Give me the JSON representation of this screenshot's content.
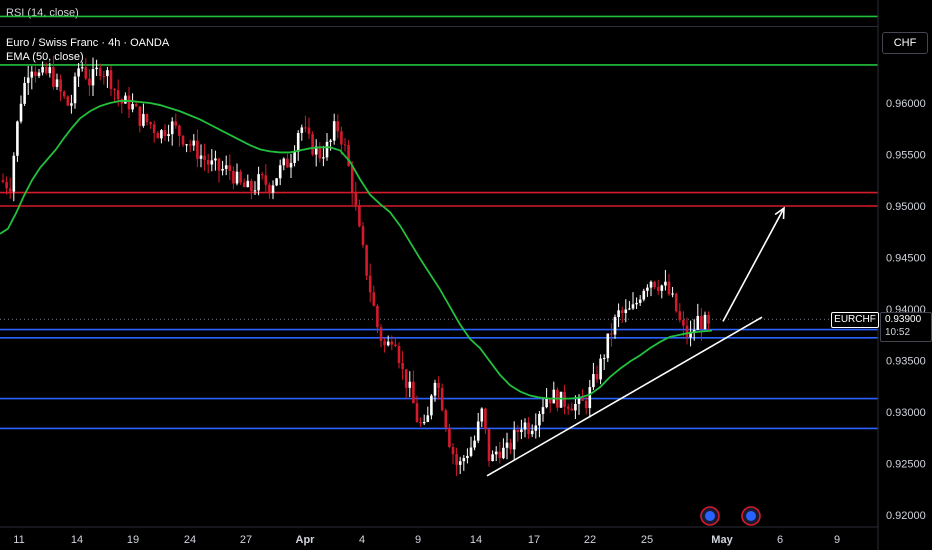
{
  "rsi_label": "RSI (14, close)",
  "symbol_title": "Euro / Swiss Franc · 4h · OANDA",
  "ema_label": "EMA (50, close)",
  "currency_button": "CHF",
  "symbol_tag": "EURCHF",
  "last_price": "0.93900",
  "countdown": "10:52",
  "colors": {
    "background": "#000000",
    "bull": "#ffffff",
    "bear": "#d41a2c",
    "ema": "#22c03c",
    "resistance_green": "#22c03c",
    "resistance_red": "#d41a2c",
    "support_blue": "#2962ff",
    "trendline": "#ffffff",
    "grid_text": "#d1d4dc"
  },
  "event_icons": [
    "economic-event-icon",
    "economic-event-icon"
  ],
  "chart_data": {
    "type": "candlestick",
    "title": "Euro / Swiss Franc · 4h · OANDA",
    "y_axis_ticks": [
      "0.96000",
      "0.95500",
      "0.95000",
      "0.94500",
      "0.94000",
      "0.93500",
      "0.93000",
      "0.92500",
      "0.92000"
    ],
    "x_axis_ticks": [
      "11",
      "14",
      "19",
      "24",
      "27",
      "Apr",
      "4",
      "9",
      "14",
      "17",
      "22",
      "25",
      "May",
      "6",
      "9"
    ],
    "ylim": [
      0.9196,
      0.9658
    ],
    "horizontal_levels": [
      {
        "price": 0.9684,
        "color": "green"
      },
      {
        "price": 0.9637,
        "color": "green"
      },
      {
        "price": 0.9513,
        "color": "red"
      },
      {
        "price": 0.95,
        "color": "red"
      },
      {
        "price": 0.938,
        "color": "blue"
      },
      {
        "price": 0.9372,
        "color": "blue"
      },
      {
        "price": 0.9313,
        "color": "blue"
      },
      {
        "price": 0.9284,
        "color": "blue"
      }
    ],
    "ema_period": 50,
    "ema_path": [
      [
        0,
        0.9473
      ],
      [
        8,
        0.9478
      ],
      [
        16,
        0.9493
      ],
      [
        24,
        0.951
      ],
      [
        32,
        0.9525
      ],
      [
        40,
        0.9537
      ],
      [
        48,
        0.9546
      ],
      [
        56,
        0.9555
      ],
      [
        64,
        0.9566
      ],
      [
        72,
        0.9576
      ],
      [
        80,
        0.9585
      ],
      [
        90,
        0.9592
      ],
      [
        100,
        0.9597
      ],
      [
        110,
        0.96
      ],
      [
        120,
        0.9602
      ],
      [
        130,
        0.9602
      ],
      [
        140,
        0.9601
      ],
      [
        150,
        0.96
      ],
      [
        160,
        0.9598
      ],
      [
        170,
        0.9595
      ],
      [
        180,
        0.9592
      ],
      [
        190,
        0.9588
      ],
      [
        200,
        0.9584
      ],
      [
        210,
        0.9579
      ],
      [
        220,
        0.9574
      ],
      [
        230,
        0.9569
      ],
      [
        240,
        0.9564
      ],
      [
        250,
        0.9559
      ],
      [
        260,
        0.9555
      ],
      [
        270,
        0.9553
      ],
      [
        280,
        0.9552
      ],
      [
        290,
        0.9552
      ],
      [
        300,
        0.9554
      ],
      [
        310,
        0.9556
      ],
      [
        320,
        0.9557
      ],
      [
        330,
        0.9557
      ],
      [
        340,
        0.9554
      ],
      [
        350,
        0.9543
      ],
      [
        360,
        0.9526
      ],
      [
        370,
        0.9511
      ],
      [
        380,
        0.9502
      ],
      [
        390,
        0.9494
      ],
      [
        400,
        0.9481
      ],
      [
        410,
        0.9465
      ],
      [
        420,
        0.9449
      ],
      [
        430,
        0.9434
      ],
      [
        440,
        0.9419
      ],
      [
        450,
        0.9402
      ],
      [
        460,
        0.9385
      ],
      [
        470,
        0.9371
      ],
      [
        480,
        0.9362
      ],
      [
        490,
        0.9349
      ],
      [
        500,
        0.9336
      ],
      [
        510,
        0.9326
      ],
      [
        520,
        0.932
      ],
      [
        530,
        0.9316
      ],
      [
        540,
        0.9314
      ],
      [
        550,
        0.9313
      ],
      [
        560,
        0.9313
      ],
      [
        570,
        0.9313
      ],
      [
        580,
        0.9314
      ],
      [
        590,
        0.9317
      ],
      [
        600,
        0.9324
      ],
      [
        610,
        0.9334
      ],
      [
        620,
        0.9342
      ],
      [
        630,
        0.9349
      ],
      [
        640,
        0.9355
      ],
      [
        650,
        0.9362
      ],
      [
        660,
        0.9368
      ],
      [
        670,
        0.9373
      ],
      [
        680,
        0.9375
      ],
      [
        690,
        0.9377
      ],
      [
        700,
        0.9378
      ],
      [
        712,
        0.9379
      ]
    ],
    "trendline": [
      [
        487,
        0.9238
      ],
      [
        762,
        0.9392
      ]
    ],
    "projection_arrow": [
      [
        723,
        0.9388
      ],
      [
        784,
        0.9498
      ]
    ],
    "current_price": 0.939
  }
}
